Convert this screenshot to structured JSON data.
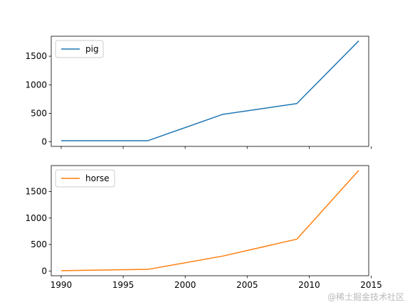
{
  "chart_data": [
    {
      "type": "line",
      "series": [
        {
          "name": "pig",
          "color": "#1f77b4",
          "x": [
            1990,
            1997,
            2003,
            2009,
            2014
          ],
          "y": [
            20,
            20,
            480,
            670,
            1770
          ]
        }
      ],
      "ylim": [
        -80,
        1850
      ],
      "yticks": [
        0,
        500,
        1000,
        1500
      ],
      "xlim": [
        1989.2,
        2014.8
      ],
      "xticks": [
        1990,
        1995,
        2000,
        2005,
        2010,
        2015
      ],
      "show_xtick_labels": false,
      "legend_position": "top-left",
      "grid": false
    },
    {
      "type": "line",
      "series": [
        {
          "name": "horse",
          "color": "#ff7f0e",
          "x": [
            1990,
            1997,
            2003,
            2009,
            2014
          ],
          "y": [
            5,
            30,
            280,
            600,
            1900
          ]
        }
      ],
      "ylim": [
        -90,
        1990
      ],
      "yticks": [
        0,
        500,
        1000,
        1500
      ],
      "xlim": [
        1989.2,
        2014.8
      ],
      "xticks": [
        1990,
        1995,
        2000,
        2005,
        2010,
        2015
      ],
      "show_xtick_labels": true,
      "legend_position": "top-left",
      "grid": false
    }
  ],
  "watermark": "@稀土掘金技术社区"
}
